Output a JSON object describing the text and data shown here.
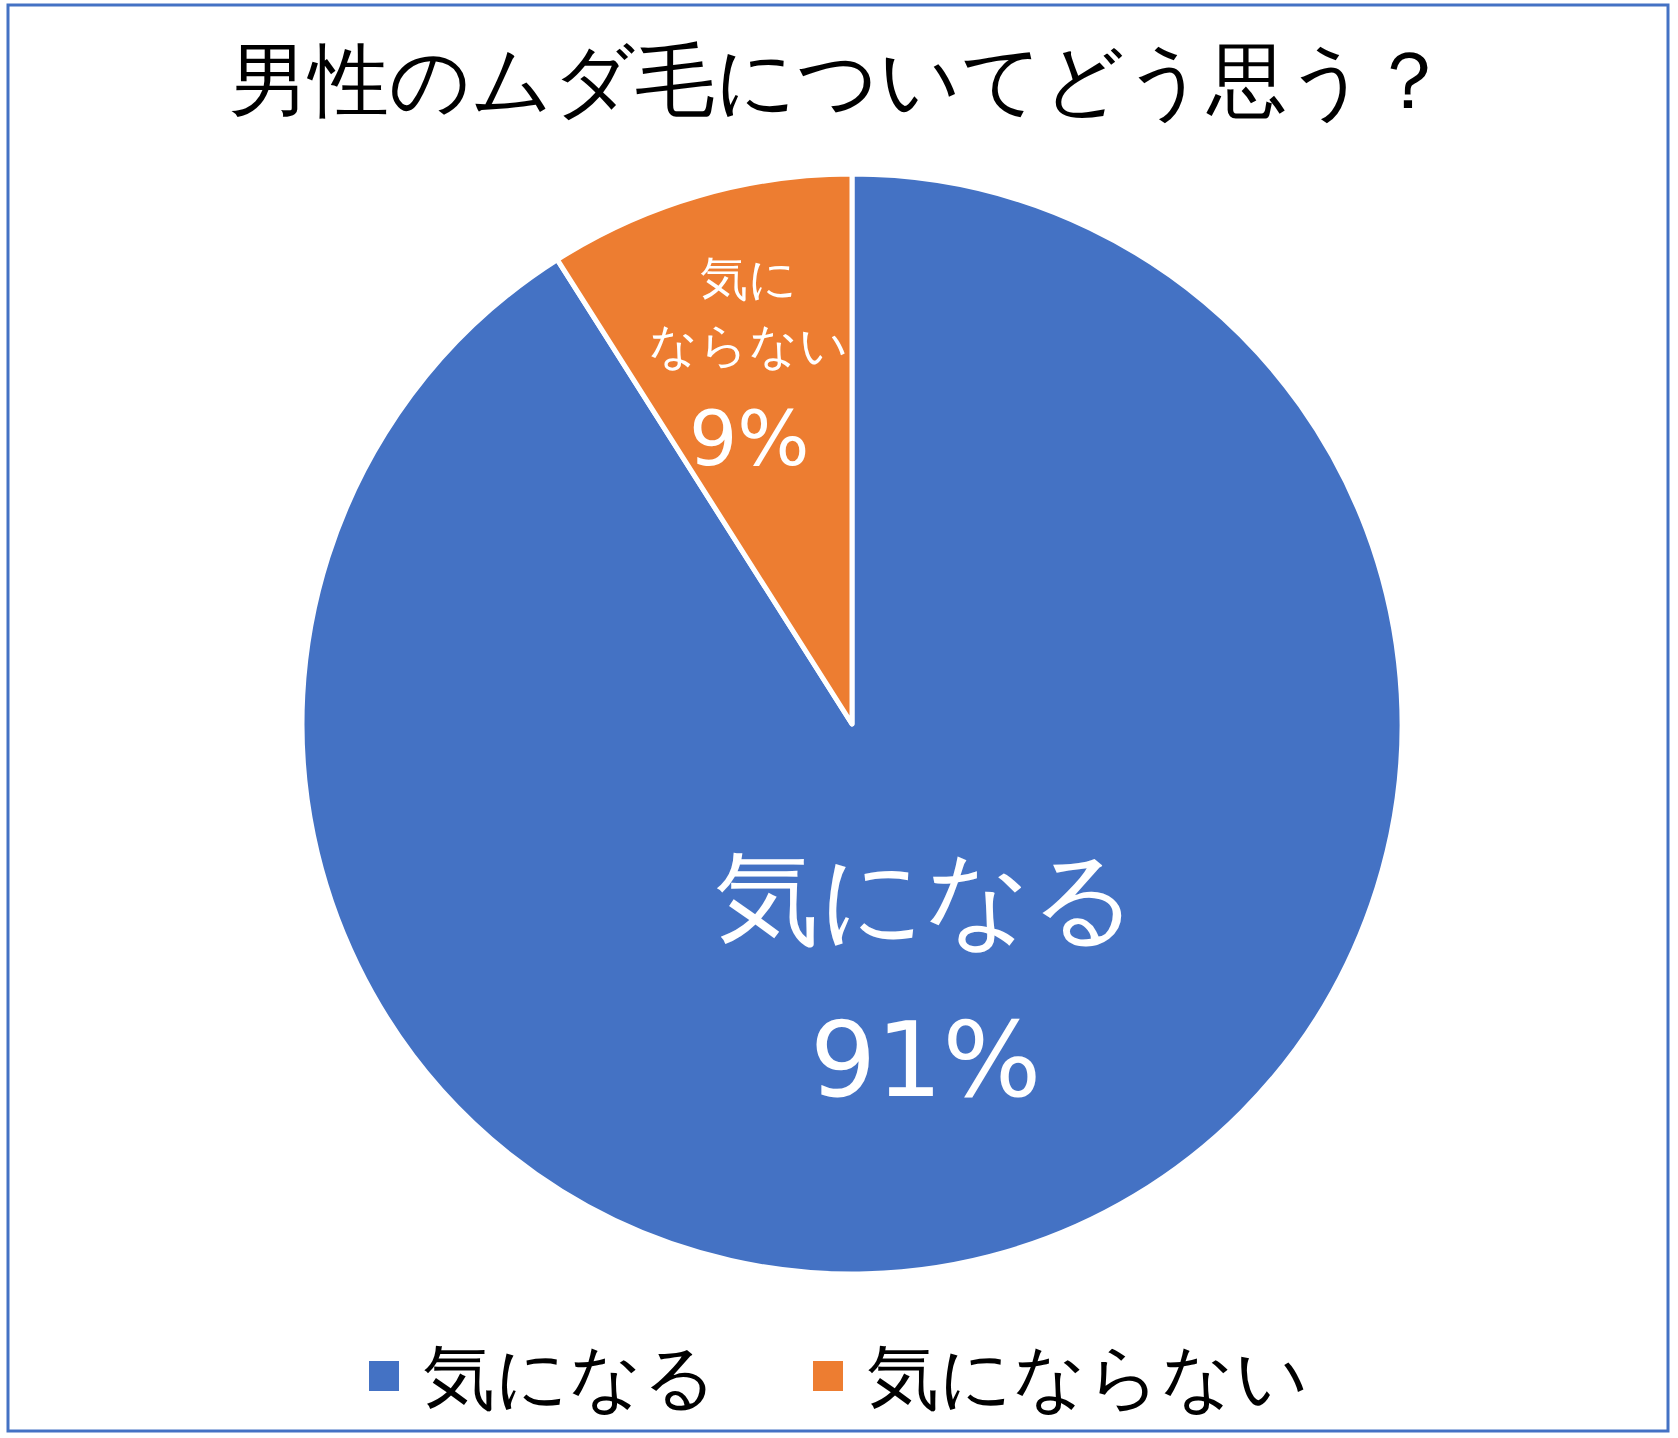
{
  "chart_data": {
    "type": "pie",
    "title": "男性のムダ毛についてどう思う？",
    "categories": [
      "気になる",
      "気にならない"
    ],
    "values": [
      91,
      9
    ],
    "colors": [
      "#4472c4",
      "#ed7d31"
    ],
    "value_labels": [
      "気になる\n91%",
      "気にならない\n9%"
    ],
    "legend": "bottom"
  }
}
